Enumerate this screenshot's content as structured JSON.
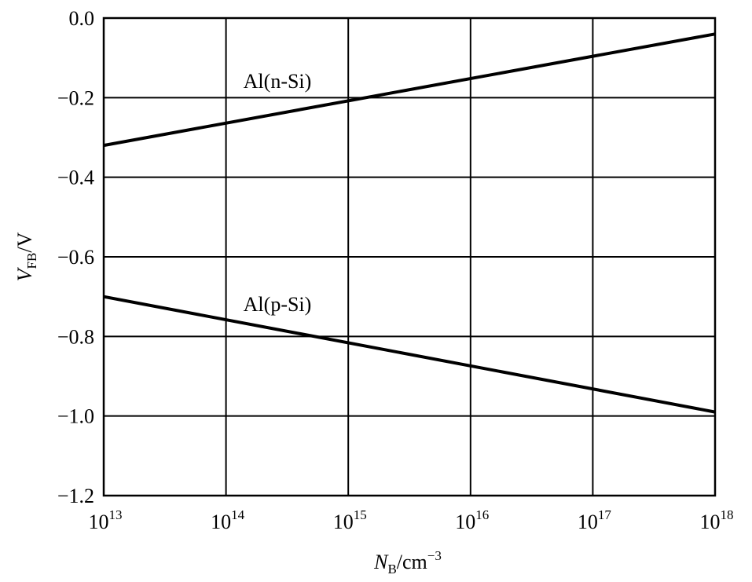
{
  "chart_data": {
    "type": "line",
    "title": "",
    "xscale": "log",
    "x_exponent_base": "10",
    "x_tick_exponents": [
      "13",
      "14",
      "15",
      "16",
      "17",
      "18"
    ],
    "xlim": [
      10000000000000.0,
      1e+18
    ],
    "ylim": [
      -1.2,
      0.0
    ],
    "y_ticks": [
      0.0,
      -0.2,
      -0.4,
      -0.6,
      -0.8,
      -1.0,
      -1.2
    ],
    "y_tick_labels": [
      "0.0",
      "−0.2",
      "−0.4",
      "−0.6",
      "−0.8",
      "−1.0",
      "−1.2"
    ],
    "xlabel": {
      "var": "N",
      "sub": "B",
      "unit": "/cm",
      "sup": "−3"
    },
    "ylabel": {
      "var": "V",
      "sub": "FB",
      "unit": "/V"
    },
    "grid": true,
    "series": [
      {
        "name": "Al(n-Si)",
        "x": [
          10000000000000.0,
          1e+18
        ],
        "y": [
          -0.32,
          -0.04
        ]
      },
      {
        "name": "Al(p-Si)",
        "x": [
          10000000000000.0,
          1e+18
        ],
        "y": [
          -0.7,
          -0.99
        ]
      }
    ],
    "colors": {
      "line": "#000000",
      "grid": "#000000",
      "background": "#ffffff"
    }
  }
}
